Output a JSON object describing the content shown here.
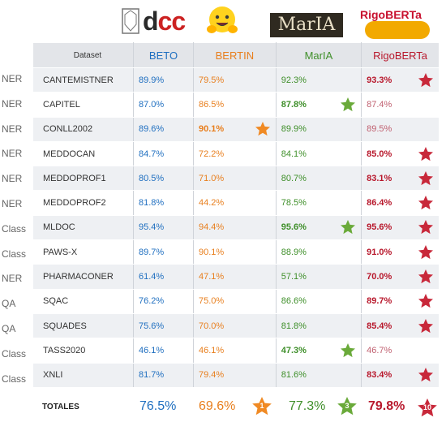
{
  "header": {
    "col_dataset": "Dataset",
    "col_beto": "BETO",
    "col_bertin": "BERTIN",
    "col_maria": "MarIA",
    "col_rigo": "RigoBERTa"
  },
  "logos": {
    "dcc_a": "d",
    "dcc_b": "cc",
    "maria": "MarIA",
    "rigo": "RigoBERTa"
  },
  "colors": {
    "beto": "#1f6fc0",
    "bertin": "#e87f1e",
    "maria": "#3f8f2a",
    "rigo": "#b8182c",
    "star_orange": "#f08a24",
    "star_green": "#6aaa3a",
    "star_red": "#c8283a"
  },
  "chart_data": {
    "type": "table",
    "columns": [
      "Dataset",
      "BETO",
      "BERTIN",
      "MarIA",
      "RigoBERTa"
    ],
    "rows": [
      {
        "task": "NER",
        "dataset": "CANTEMISTNER",
        "beto": "89.9%",
        "bertin": "79.5%",
        "maria": "92.3%",
        "rigo": "93.3%",
        "best": "rigo"
      },
      {
        "task": "NER",
        "dataset": "CAPITEL",
        "beto": "87.0%",
        "bertin": "86.5%",
        "maria": "87.8%",
        "rigo": "87.4%",
        "best": "maria"
      },
      {
        "task": "NER",
        "dataset": "CONLL2002",
        "beto": "89.6%",
        "bertin": "90.1%",
        "maria": "89.9%",
        "rigo": "89.5%",
        "best": "bertin"
      },
      {
        "task": "NER",
        "dataset": "MEDDOCAN",
        "beto": "84.7%",
        "bertin": "72.2%",
        "maria": "84.1%",
        "rigo": "85.0%",
        "best": "rigo"
      },
      {
        "task": "NER",
        "dataset": "MEDDOPROF1",
        "beto": "80.5%",
        "bertin": "71.0%",
        "maria": "80.7%",
        "rigo": "83.1%",
        "best": "rigo"
      },
      {
        "task": "NER",
        "dataset": "MEDDOPROF2",
        "beto": "81.8%",
        "bertin": "44.2%",
        "maria": "78.5%",
        "rigo": "86.4%",
        "best": "rigo"
      },
      {
        "task": "Class",
        "dataset": "MLDOC",
        "beto": "95.4%",
        "bertin": "94.4%",
        "maria": "95.6%",
        "rigo": "95.6%",
        "best": "maria,rigo"
      },
      {
        "task": "Class",
        "dataset": "PAWS-X",
        "beto": "89.7%",
        "bertin": "90.1%",
        "maria": "88.9%",
        "rigo": "91.0%",
        "best": "rigo"
      },
      {
        "task": "NER",
        "dataset": "PHARMACONER",
        "beto": "61.4%",
        "bertin": "47.1%",
        "maria": "57.1%",
        "rigo": "70.0%",
        "best": "rigo"
      },
      {
        "task": "QA",
        "dataset": "SQAC",
        "beto": "76.2%",
        "bertin": "75.0%",
        "maria": "86.6%",
        "rigo": "89.7%",
        "best": "rigo"
      },
      {
        "task": "QA",
        "dataset": "SQUADES",
        "beto": "75.6%",
        "bertin": "70.0%",
        "maria": "81.8%",
        "rigo": "85.4%",
        "best": "rigo"
      },
      {
        "task": "Class",
        "dataset": "TASS2020",
        "beto": "46.1%",
        "bertin": "46.1%",
        "maria": "47.3%",
        "rigo": "46.7%",
        "best": "maria"
      },
      {
        "task": "Class",
        "dataset": "XNLI",
        "beto": "81.7%",
        "bertin": "79.4%",
        "maria": "81.6%",
        "rigo": "83.4%",
        "best": "rigo"
      }
    ],
    "totals": {
      "label": "TOTALES",
      "beto": "76.5%",
      "bertin": "69.6%",
      "maria": "77.3%",
      "rigo": "79.8%",
      "bertin_wins": "1",
      "maria_wins": "3",
      "rigo_wins": "10"
    }
  }
}
